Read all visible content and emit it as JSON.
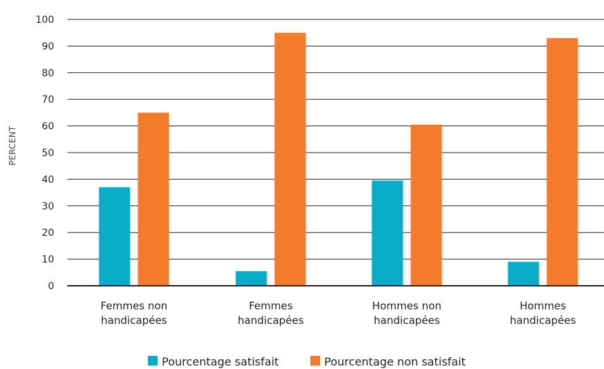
{
  "chart_data": {
    "type": "bar",
    "title": "",
    "xlabel": "",
    "ylabel": "PERCENT",
    "ylim": [
      0,
      100
    ],
    "yticks": [
      0,
      10,
      20,
      30,
      40,
      50,
      60,
      70,
      80,
      90,
      100
    ],
    "grid": true,
    "legend_position": "bottom",
    "categories": [
      [
        "Femmes non",
        "handicapées"
      ],
      [
        "Femmes",
        "handicapées"
      ],
      [
        "Hommes non",
        "handicapées"
      ],
      [
        "Hommes",
        "handicapées"
      ]
    ],
    "series": [
      {
        "name": "Pourcentage satisfait",
        "color": "#0aadc8",
        "values": [
          37,
          5.5,
          39.5,
          9
        ]
      },
      {
        "name": "Pourcentage non satisfait",
        "color": "#f47a2c",
        "values": [
          65,
          95,
          60.5,
          93
        ]
      }
    ]
  }
}
